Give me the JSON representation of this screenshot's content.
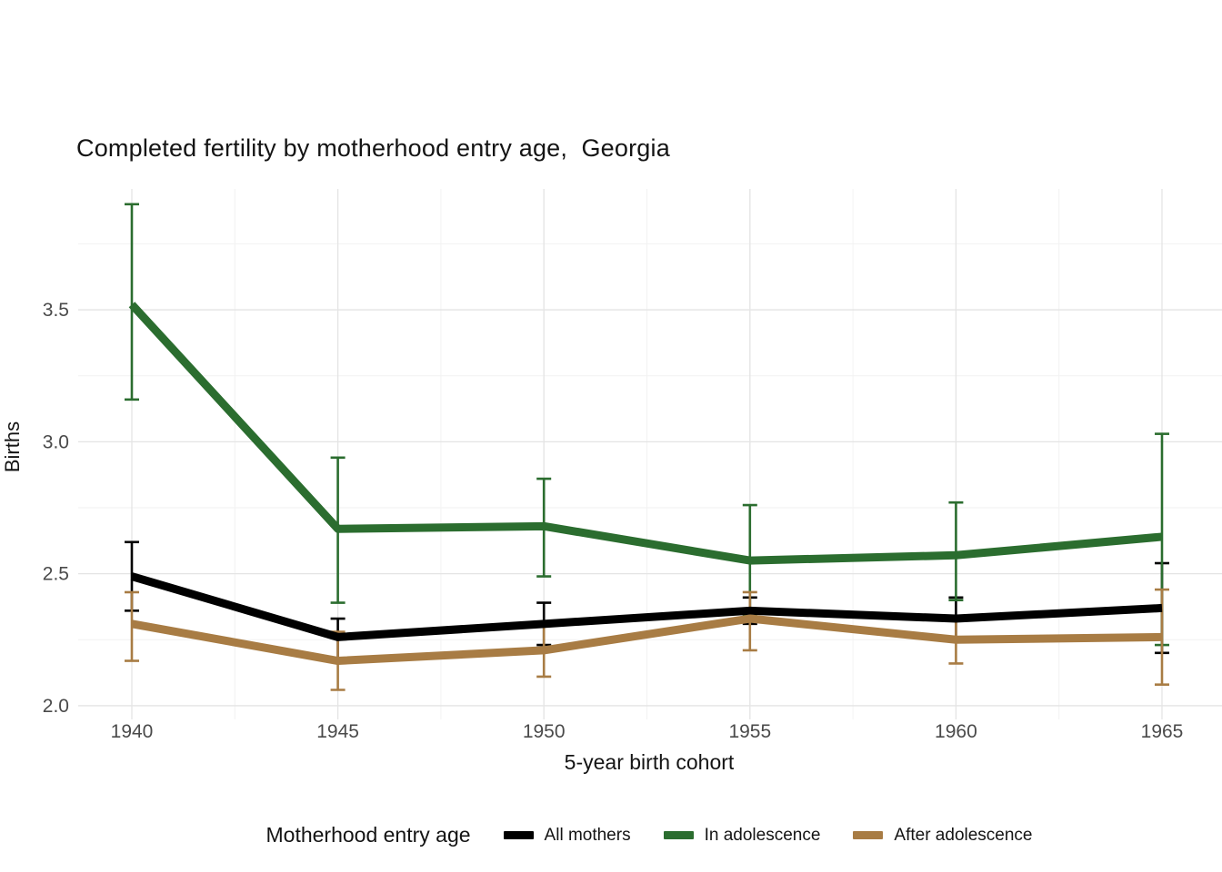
{
  "title": "Completed fertility by motherhood entry age,  Georgia",
  "legend": {
    "title": "Motherhood entry age",
    "items": [
      {
        "label": "All mothers",
        "color": "#000000"
      },
      {
        "label": "In adolescence",
        "color": "#2b6d2f"
      },
      {
        "label": "After adolescence",
        "color": "#a87c44"
      }
    ]
  },
  "chart_data": {
    "type": "line",
    "title": "Completed fertility by motherhood entry age,  Georgia",
    "xlabel": "5-year birth cohort",
    "ylabel": "Births",
    "x": [
      1940,
      1945,
      1950,
      1955,
      1960,
      1965
    ],
    "xtick_labels": [
      "1940",
      "1945",
      "1950",
      "1955",
      "1960",
      "1965"
    ],
    "yticks": [
      2.0,
      2.5,
      3.0,
      3.5
    ],
    "ytick_labels": [
      "2.0",
      "2.5",
      "3.0",
      "3.5"
    ],
    "ylim": [
      1.955,
      3.951
    ],
    "grid": true,
    "legend_position": "bottom",
    "series": [
      {
        "name": "All mothers",
        "color": "#000000",
        "values": [
          2.49,
          2.26,
          2.31,
          2.36,
          2.33,
          2.37
        ],
        "ci_low": [
          2.36,
          2.18,
          2.23,
          2.31,
          2.26,
          2.2
        ],
        "ci_high": [
          2.62,
          2.33,
          2.39,
          2.41,
          2.41,
          2.54
        ]
      },
      {
        "name": "In adolescence",
        "color": "#2b6d2f",
        "values": [
          3.52,
          2.67,
          2.68,
          2.55,
          2.57,
          2.64
        ],
        "ci_low": [
          3.16,
          2.39,
          2.49,
          2.34,
          2.4,
          2.23
        ],
        "ci_high": [
          3.9,
          2.94,
          2.86,
          2.76,
          2.77,
          3.03
        ]
      },
      {
        "name": "After adolescence",
        "color": "#a87c44",
        "values": [
          2.31,
          2.17,
          2.21,
          2.33,
          2.25,
          2.26
        ],
        "ci_low": [
          2.17,
          2.06,
          2.11,
          2.21,
          2.16,
          2.08
        ],
        "ci_high": [
          2.43,
          2.28,
          2.31,
          2.43,
          2.34,
          2.44
        ]
      }
    ]
  }
}
